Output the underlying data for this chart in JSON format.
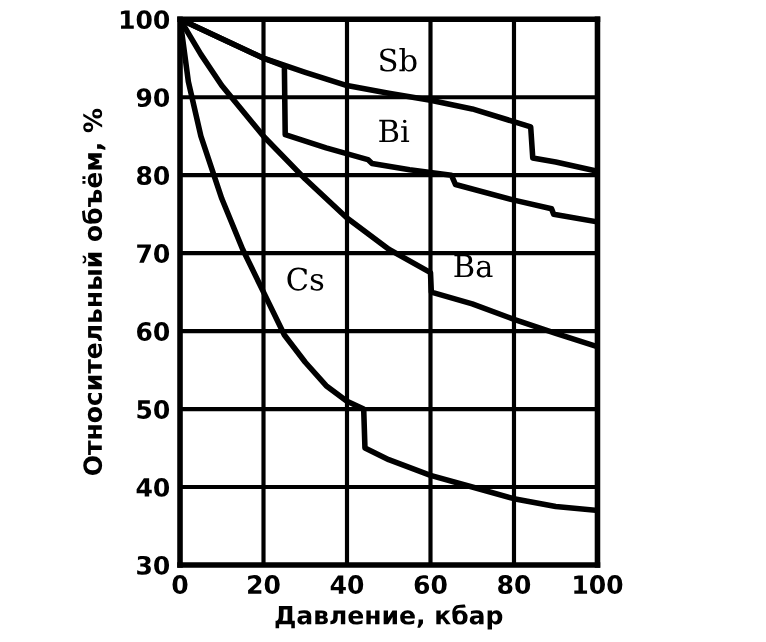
{
  "chart_data": {
    "type": "line",
    "xlabel": "Давление, кбар",
    "ylabel": "Относительный объём, %",
    "xlim": [
      0,
      100
    ],
    "ylim": [
      30,
      100
    ],
    "xticks": [
      0,
      20,
      40,
      60,
      80,
      100
    ],
    "yticks": [
      30,
      40,
      50,
      60,
      70,
      80,
      90,
      100
    ],
    "grid": true,
    "legend": false,
    "marker": "none",
    "line_style": "solid",
    "series": [
      {
        "color": "#000000",
        "x": [
          0,
          10,
          20,
          30,
          40,
          50,
          60,
          70,
          84,
          84.5,
          90,
          100
        ],
        "values": [
          100,
          97.5,
          95,
          93.2,
          91.5,
          90.5,
          89.6,
          88.5,
          86.2,
          82.2,
          81.7,
          80.5
        ]
      },
      {
        "color": "#000000",
        "x": [
          0,
          10,
          20,
          25,
          25.2,
          35,
          45,
          46,
          55,
          65,
          66,
          80,
          89,
          89.5,
          100
        ],
        "values": [
          100,
          97.5,
          95,
          94,
          85.2,
          83.5,
          82,
          81.5,
          80.7,
          80,
          78.8,
          76.8,
          75.7,
          75,
          74
        ]
      },
      {
        "color": "#000000",
        "x": [
          0,
          5,
          10,
          20,
          30,
          40,
          50,
          60,
          60.2,
          70,
          80,
          90,
          100
        ],
        "values": [
          100,
          95.5,
          91.5,
          85,
          79.5,
          74.5,
          70.5,
          67.5,
          65,
          63.5,
          61.5,
          59.7,
          58
        ]
      },
      {
        "color": "#000000",
        "x": [
          0,
          2,
          5,
          10,
          15,
          20,
          25,
          30,
          35,
          40,
          44,
          44.3,
          50,
          60,
          70,
          80,
          90,
          100
        ],
        "values": [
          100,
          92,
          85,
          77,
          70.5,
          65,
          59.5,
          56,
          53,
          51,
          50,
          45,
          43.5,
          41.5,
          40,
          38.5,
          37.5,
          37
        ]
      }
    ],
    "annotations": [
      {
        "text": "Sb",
        "x": 44,
        "y": 91.1
      },
      {
        "text": "Bi",
        "x": 44,
        "y": 82
      },
      {
        "text": "Ba",
        "x": 62,
        "y": 64.7
      },
      {
        "text": "Cs",
        "x": 22,
        "y": 63
      }
    ]
  }
}
